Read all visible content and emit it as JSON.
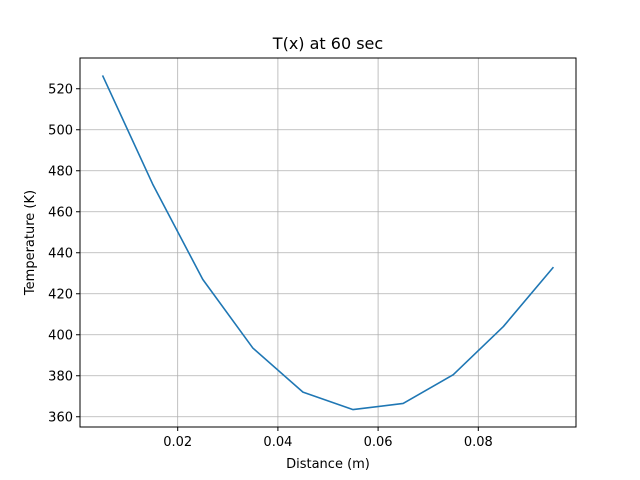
{
  "chart_data": {
    "type": "line",
    "title": "T(x) at 60 sec",
    "xlabel": "Distance (m)",
    "ylabel": "Temperature (K)",
    "xlim": [
      0.0005,
      0.0995
    ],
    "ylim": [
      355,
      535
    ],
    "xticks": [
      0.02,
      0.04,
      0.06,
      0.08
    ],
    "xtick_labels": [
      "0.02",
      "0.04",
      "0.06",
      "0.08"
    ],
    "yticks": [
      360,
      380,
      400,
      420,
      440,
      460,
      480,
      500,
      520
    ],
    "ytick_labels": [
      "360",
      "380",
      "400",
      "420",
      "440",
      "460",
      "480",
      "500",
      "520"
    ],
    "grid": true,
    "series": [
      {
        "color": "#1f77b4",
        "x": [
          0.005,
          0.015,
          0.025,
          0.035,
          0.045,
          0.055,
          0.065,
          0.075,
          0.085,
          0.095
        ],
        "y": [
          526.5,
          473.5,
          427.0,
          393.5,
          372.0,
          363.5,
          366.5,
          380.5,
          404.0,
          433.0
        ]
      }
    ]
  }
}
